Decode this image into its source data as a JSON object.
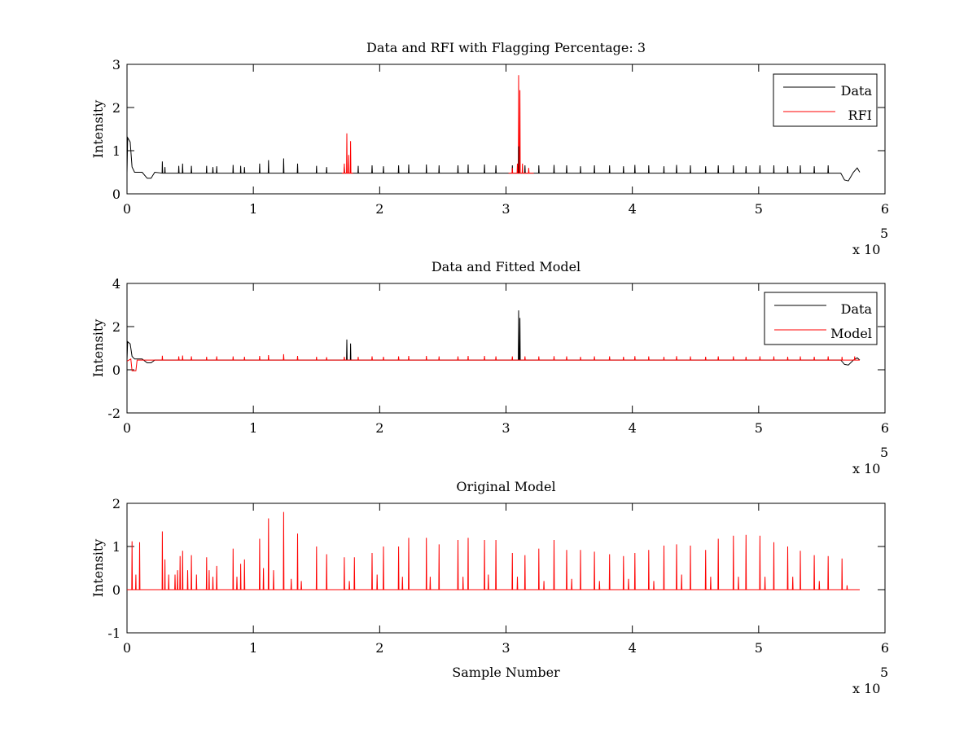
{
  "chart_data": [
    {
      "type": "line",
      "title": "Data and RFI with Flagging Percentage: 3",
      "xlabel": "",
      "ylabel": "Intensity",
      "xlim": [
        0,
        600000
      ],
      "ylim": [
        0,
        3
      ],
      "xticks": [
        0,
        1,
        2,
        3,
        4,
        5,
        6
      ],
      "yticks": [
        0,
        1,
        2,
        3
      ],
      "x_multiplier": "x 10",
      "x_multiplier_exp": "5",
      "grid": false,
      "legend": "top-right",
      "series": [
        {
          "name": "Data",
          "color": "#000000",
          "baseline": 0.48,
          "start_shape": [
            [
              0,
              0.48
            ],
            [
              500,
              1.3
            ],
            [
              2500,
              1.2
            ],
            [
              4000,
              0.62
            ],
            [
              6000,
              0.5
            ],
            [
              12000,
              0.5
            ],
            [
              16000,
              0.36
            ],
            [
              19000,
              0.36
            ],
            [
              22000,
              0.5
            ]
          ],
          "end_shape": [
            [
              565000,
              0.48
            ],
            [
              568000,
              0.32
            ],
            [
              571000,
              0.3
            ],
            [
              575000,
              0.5
            ],
            [
              578000,
              0.6
            ],
            [
              580000,
              0.5
            ]
          ],
          "spikes": [
            [
              7000,
              0.65
            ],
            [
              21000,
              0.65
            ],
            [
              28000,
              0.75
            ],
            [
              30000,
              0.62
            ],
            [
              41000,
              0.65
            ],
            [
              44000,
              0.7
            ],
            [
              51000,
              0.65
            ],
            [
              63000,
              0.65
            ],
            [
              68000,
              0.62
            ],
            [
              71000,
              0.64
            ],
            [
              84000,
              0.67
            ],
            [
              90000,
              0.65
            ],
            [
              93000,
              0.62
            ],
            [
              105000,
              0.7
            ],
            [
              112000,
              0.78
            ],
            [
              124000,
              0.82
            ],
            [
              135000,
              0.7
            ],
            [
              150000,
              0.65
            ],
            [
              158000,
              0.62
            ],
            [
              172000,
              0.62
            ],
            [
              183000,
              0.65
            ],
            [
              194000,
              0.66
            ],
            [
              203000,
              0.64
            ],
            [
              215000,
              0.66
            ],
            [
              223000,
              0.68
            ],
            [
              237000,
              0.68
            ],
            [
              247000,
              0.66
            ],
            [
              262000,
              0.66
            ],
            [
              270000,
              0.68
            ],
            [
              283000,
              0.68
            ],
            [
              292000,
              0.66
            ],
            [
              305000,
              0.66
            ],
            [
              315000,
              0.66
            ],
            [
              326000,
              0.66
            ],
            [
              338000,
              0.67
            ],
            [
              348000,
              0.66
            ],
            [
              359000,
              0.64
            ],
            [
              370000,
              0.66
            ],
            [
              382000,
              0.66
            ],
            [
              393000,
              0.64
            ],
            [
              402000,
              0.67
            ],
            [
              413000,
              0.66
            ],
            [
              425000,
              0.64
            ],
            [
              435000,
              0.67
            ],
            [
              446000,
              0.66
            ],
            [
              458000,
              0.64
            ],
            [
              468000,
              0.66
            ],
            [
              480000,
              0.66
            ],
            [
              490000,
              0.64
            ],
            [
              501000,
              0.66
            ],
            [
              512000,
              0.66
            ],
            [
              523000,
              0.64
            ],
            [
              533000,
              0.66
            ],
            [
              544000,
              0.64
            ],
            [
              555000,
              0.66
            ]
          ],
          "end_x": 580000
        },
        {
          "name": "RFI",
          "color": "#ff0000",
          "segments": [
            {
              "x0": 170000,
              "x1": 179000,
              "baseline": 0.48,
              "spikes": [
                [
                  172000,
                  0.7
                ],
                [
                  174000,
                  1.4
                ],
                [
                  175500,
                  0.9
                ],
                [
                  177000,
                  1.22
                ]
              ]
            },
            {
              "x0": 302000,
              "x1": 322000,
              "baseline": 0.48,
              "spikes": [
                [
                  305000,
                  0.6
                ],
                [
                  309000,
                  0.7
                ],
                [
                  310000,
                  2.75
                ],
                [
                  311000,
                  2.4
                ],
                [
                  313000,
                  0.7
                ],
                [
                  318000,
                  0.6
                ]
              ]
            }
          ]
        }
      ],
      "overlay_black_spikes": [
        [
          310000,
          1.1
        ]
      ]
    },
    {
      "type": "line",
      "title": "Data and Fitted Model",
      "xlabel": "",
      "ylabel": "Intensity",
      "xlim": [
        0,
        600000
      ],
      "ylim": [
        -2,
        4
      ],
      "xticks": [
        0,
        1,
        2,
        3,
        4,
        5,
        6
      ],
      "yticks": [
        -2,
        0,
        2,
        4
      ],
      "x_multiplier": "x 10",
      "x_multiplier_exp": "5",
      "grid": false,
      "legend": "top-right",
      "series": [
        {
          "name": "Data",
          "color": "#000000",
          "baseline": 0.45,
          "start_shape": [
            [
              0,
              0.45
            ],
            [
              500,
              1.3
            ],
            [
              2500,
              1.2
            ],
            [
              4000,
              0.62
            ],
            [
              6000,
              0.5
            ],
            [
              12000,
              0.5
            ],
            [
              16000,
              0.32
            ],
            [
              19000,
              0.32
            ],
            [
              22000,
              0.45
            ]
          ],
          "end_shape": [
            [
              565000,
              0.45
            ],
            [
              568000,
              0.25
            ],
            [
              571000,
              0.22
            ],
            [
              575000,
              0.45
            ],
            [
              578000,
              0.55
            ],
            [
              580000,
              0.45
            ]
          ],
          "spikes": [
            [
              174000,
              1.4
            ],
            [
              177000,
              1.22
            ],
            [
              310000,
              2.75
            ],
            [
              311000,
              2.4
            ]
          ],
          "end_x": 580000
        },
        {
          "name": "Model",
          "color": "#ff0000",
          "baseline": 0.45,
          "start_shape": [
            [
              0,
              0.4
            ],
            [
              3000,
              0.5
            ],
            [
              4000,
              -0.05
            ],
            [
              7000,
              -0.05
            ],
            [
              8000,
              0.45
            ]
          ],
          "spikes": [
            [
              28000,
              0.65
            ],
            [
              41000,
              0.62
            ],
            [
              44000,
              0.66
            ],
            [
              51000,
              0.62
            ],
            [
              63000,
              0.6
            ],
            [
              71000,
              0.62
            ],
            [
              84000,
              0.62
            ],
            [
              93000,
              0.6
            ],
            [
              105000,
              0.64
            ],
            [
              112000,
              0.68
            ],
            [
              124000,
              0.72
            ],
            [
              135000,
              0.64
            ],
            [
              150000,
              0.6
            ],
            [
              158000,
              0.58
            ],
            [
              172000,
              0.6
            ],
            [
              183000,
              0.6
            ],
            [
              194000,
              0.62
            ],
            [
              203000,
              0.6
            ],
            [
              215000,
              0.62
            ],
            [
              223000,
              0.64
            ],
            [
              237000,
              0.64
            ],
            [
              247000,
              0.62
            ],
            [
              262000,
              0.62
            ],
            [
              270000,
              0.64
            ],
            [
              283000,
              0.64
            ],
            [
              292000,
              0.62
            ],
            [
              305000,
              0.62
            ],
            [
              315000,
              0.62
            ],
            [
              326000,
              0.62
            ],
            [
              338000,
              0.63
            ],
            [
              348000,
              0.62
            ],
            [
              359000,
              0.6
            ],
            [
              370000,
              0.62
            ],
            [
              382000,
              0.62
            ],
            [
              393000,
              0.6
            ],
            [
              402000,
              0.63
            ],
            [
              413000,
              0.62
            ],
            [
              425000,
              0.6
            ],
            [
              435000,
              0.63
            ],
            [
              446000,
              0.62
            ],
            [
              458000,
              0.6
            ],
            [
              468000,
              0.62
            ],
            [
              480000,
              0.62
            ],
            [
              490000,
              0.6
            ],
            [
              501000,
              0.62
            ],
            [
              512000,
              0.62
            ],
            [
              523000,
              0.6
            ],
            [
              533000,
              0.62
            ],
            [
              544000,
              0.6
            ],
            [
              555000,
              0.62
            ],
            [
              566000,
              0.6
            ],
            [
              576000,
              0.62
            ]
          ],
          "end_x": 580000
        }
      ]
    },
    {
      "type": "line",
      "title": "Original Model",
      "xlabel": "Sample Number",
      "ylabel": "Intensity",
      "xlim": [
        0,
        600000
      ],
      "ylim": [
        -1,
        2
      ],
      "xticks": [
        0,
        1,
        2,
        3,
        4,
        5,
        6
      ],
      "yticks": [
        -1,
        0,
        1,
        2
      ],
      "x_multiplier": "x 10",
      "x_multiplier_exp": "5",
      "grid": false,
      "legend": "none",
      "series": [
        {
          "color": "#ff0000",
          "baseline": 0.0,
          "spikes": [
            [
              4000,
              1.12
            ],
            [
              7000,
              0.35
            ],
            [
              10000,
              1.1
            ],
            [
              28000,
              1.35
            ],
            [
              30000,
              0.7
            ],
            [
              33000,
              0.35
            ],
            [
              38000,
              0.35
            ],
            [
              40000,
              0.45
            ],
            [
              42000,
              0.78
            ],
            [
              44000,
              0.9
            ],
            [
              48000,
              0.45
            ],
            [
              51000,
              0.8
            ],
            [
              55000,
              0.35
            ],
            [
              63000,
              0.75
            ],
            [
              65000,
              0.45
            ],
            [
              68000,
              0.3
            ],
            [
              71000,
              0.55
            ],
            [
              84000,
              0.95
            ],
            [
              87000,
              0.3
            ],
            [
              90000,
              0.6
            ],
            [
              93000,
              0.7
            ],
            [
              105000,
              1.18
            ],
            [
              108000,
              0.5
            ],
            [
              112000,
              1.65
            ],
            [
              116000,
              0.45
            ],
            [
              124000,
              1.8
            ],
            [
              130000,
              0.25
            ],
            [
              135000,
              1.3
            ],
            [
              138000,
              0.2
            ],
            [
              150000,
              1.0
            ],
            [
              158000,
              0.82
            ],
            [
              172000,
              0.75
            ],
            [
              176000,
              0.2
            ],
            [
              180000,
              0.75
            ],
            [
              194000,
              0.85
            ],
            [
              198000,
              0.35
            ],
            [
              203000,
              1.0
            ],
            [
              215000,
              1.0
            ],
            [
              218000,
              0.3
            ],
            [
              223000,
              1.2
            ],
            [
              237000,
              1.2
            ],
            [
              240000,
              0.3
            ],
            [
              247000,
              1.05
            ],
            [
              262000,
              1.15
            ],
            [
              266000,
              0.3
            ],
            [
              270000,
              1.2
            ],
            [
              283000,
              1.15
            ],
            [
              286000,
              0.35
            ],
            [
              292000,
              1.15
            ],
            [
              305000,
              0.85
            ],
            [
              309000,
              0.3
            ],
            [
              315000,
              0.8
            ],
            [
              326000,
              0.95
            ],
            [
              330000,
              0.2
            ],
            [
              338000,
              1.15
            ],
            [
              348000,
              0.92
            ],
            [
              352000,
              0.25
            ],
            [
              359000,
              0.92
            ],
            [
              370000,
              0.88
            ],
            [
              374000,
              0.2
            ],
            [
              382000,
              0.82
            ],
            [
              393000,
              0.78
            ],
            [
              397000,
              0.25
            ],
            [
              402000,
              0.85
            ],
            [
              413000,
              0.92
            ],
            [
              417000,
              0.2
            ],
            [
              425000,
              1.02
            ],
            [
              435000,
              1.05
            ],
            [
              439000,
              0.35
            ],
            [
              446000,
              1.02
            ],
            [
              458000,
              0.92
            ],
            [
              462000,
              0.3
            ],
            [
              468000,
              1.18
            ],
            [
              480000,
              1.25
            ],
            [
              484000,
              0.3
            ],
            [
              490000,
              1.27
            ],
            [
              501000,
              1.25
            ],
            [
              505000,
              0.3
            ],
            [
              512000,
              1.1
            ],
            [
              523000,
              1.0
            ],
            [
              527000,
              0.3
            ],
            [
              533000,
              0.9
            ],
            [
              544000,
              0.8
            ],
            [
              548000,
              0.2
            ],
            [
              555000,
              0.78
            ],
            [
              566000,
              0.72
            ],
            [
              570000,
              0.1
            ]
          ],
          "end_x": 580000
        }
      ]
    }
  ]
}
